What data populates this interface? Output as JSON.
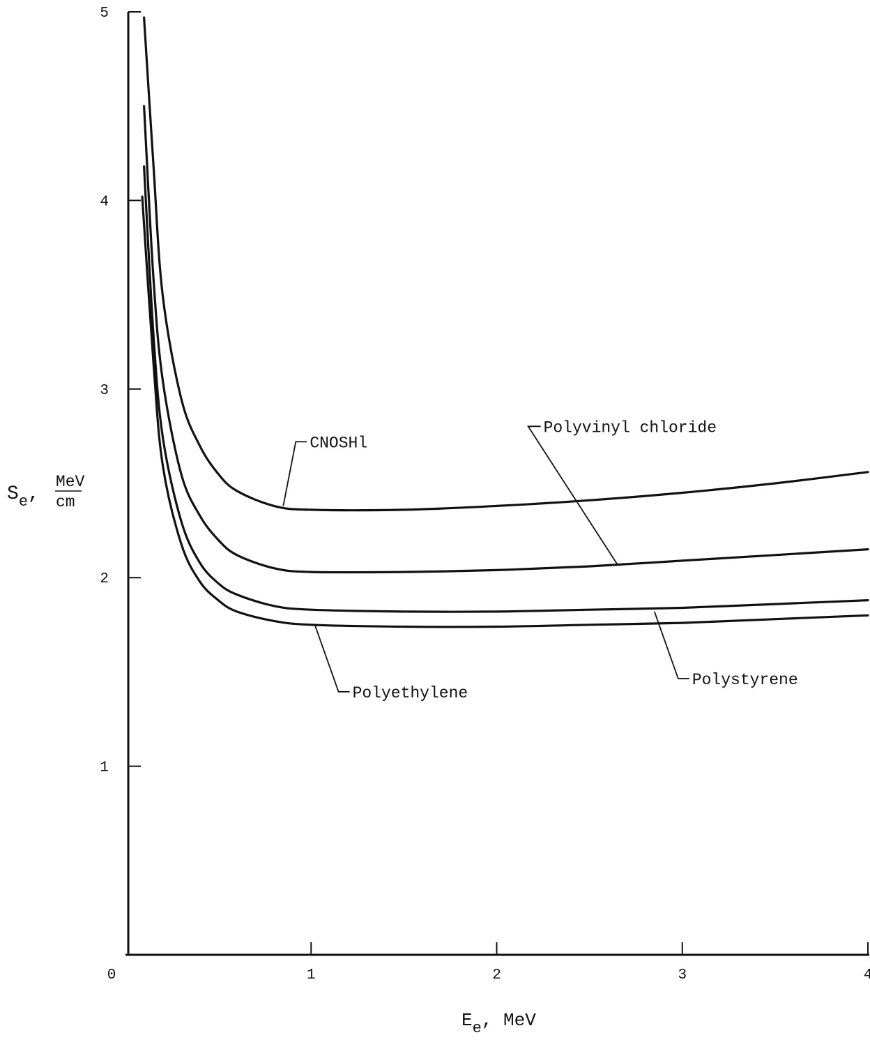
{
  "chart_data": {
    "type": "line",
    "x_axis": {
      "label_main": "E",
      "label_sub": "e",
      "label_unit": ", MeV",
      "range": [
        0,
        4
      ],
      "ticks": [
        0,
        1,
        2,
        3,
        4
      ],
      "tick_labels": [
        "0",
        "1",
        "2",
        "3",
        "4"
      ]
    },
    "y_axis": {
      "label_main": "S",
      "label_sub": "e",
      "label_sep": ",",
      "unit_numerator": "MeV",
      "unit_denominator": "cm",
      "range": [
        0,
        5
      ],
      "ticks": [
        1,
        2,
        3,
        4,
        5
      ],
      "tick_labels": [
        "1",
        "2",
        "3",
        "4",
        "5"
      ]
    },
    "grid": false,
    "legend": "none (curves labeled directly)",
    "series": [
      {
        "name": "CNOSHl",
        "points": [
          [
            0.1,
            4.97
          ],
          [
            0.15,
            4.2
          ],
          [
            0.2,
            3.5
          ],
          [
            0.3,
            2.95
          ],
          [
            0.4,
            2.7
          ],
          [
            0.5,
            2.55
          ],
          [
            0.6,
            2.46
          ],
          [
            0.8,
            2.38
          ],
          [
            1.0,
            2.36
          ],
          [
            1.5,
            2.36
          ],
          [
            2.0,
            2.38
          ],
          [
            2.5,
            2.41
          ],
          [
            3.0,
            2.45
          ],
          [
            3.5,
            2.5
          ],
          [
            4.0,
            2.56
          ]
        ],
        "label_anchor": [
          0.85,
          2.38
        ],
        "label_direction": "up-right"
      },
      {
        "name": "Polyvinyl chloride",
        "points": [
          [
            0.1,
            4.5
          ],
          [
            0.15,
            3.6
          ],
          [
            0.2,
            3.05
          ],
          [
            0.3,
            2.55
          ],
          [
            0.4,
            2.33
          ],
          [
            0.5,
            2.2
          ],
          [
            0.6,
            2.12
          ],
          [
            0.8,
            2.05
          ],
          [
            1.0,
            2.03
          ],
          [
            1.5,
            2.03
          ],
          [
            2.0,
            2.04
          ],
          [
            2.5,
            2.06
          ],
          [
            3.0,
            2.09
          ],
          [
            3.5,
            2.12
          ],
          [
            4.0,
            2.15
          ]
        ],
        "label_anchor": [
          2.65,
          2.07
        ],
        "label_direction": "up-left"
      },
      {
        "name": "Polystyrene",
        "points": [
          [
            0.1,
            4.18
          ],
          [
            0.15,
            3.3
          ],
          [
            0.2,
            2.75
          ],
          [
            0.3,
            2.3
          ],
          [
            0.4,
            2.08
          ],
          [
            0.5,
            1.97
          ],
          [
            0.6,
            1.91
          ],
          [
            0.8,
            1.85
          ],
          [
            1.0,
            1.83
          ],
          [
            1.5,
            1.82
          ],
          [
            2.0,
            1.82
          ],
          [
            2.5,
            1.83
          ],
          [
            3.0,
            1.84
          ],
          [
            3.5,
            1.86
          ],
          [
            4.0,
            1.88
          ]
        ],
        "label_anchor": [
          2.85,
          1.82
        ],
        "label_direction": "down-right"
      },
      {
        "name": "Polyethylene",
        "points": [
          [
            0.09,
            4.02
          ],
          [
            0.15,
            3.15
          ],
          [
            0.2,
            2.6
          ],
          [
            0.3,
            2.18
          ],
          [
            0.4,
            1.98
          ],
          [
            0.5,
            1.88
          ],
          [
            0.6,
            1.82
          ],
          [
            0.8,
            1.77
          ],
          [
            1.0,
            1.75
          ],
          [
            1.5,
            1.74
          ],
          [
            2.0,
            1.74
          ],
          [
            2.5,
            1.75
          ],
          [
            3.0,
            1.76
          ],
          [
            3.5,
            1.78
          ],
          [
            4.0,
            1.8
          ]
        ],
        "label_anchor": [
          1.02,
          1.75
        ],
        "label_direction": "down-right"
      }
    ]
  }
}
